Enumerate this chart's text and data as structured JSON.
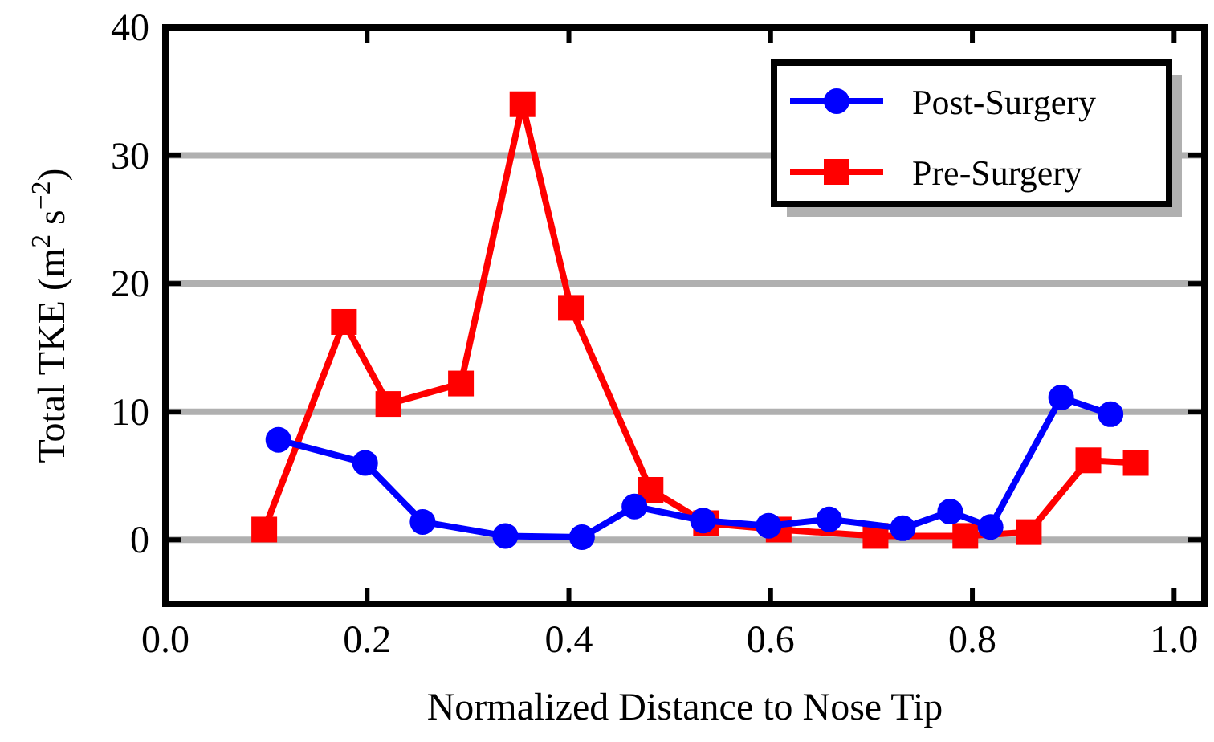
{
  "chart_data": {
    "type": "line",
    "xlabel": "Normalized Distance to Nose Tip",
    "ylabel": "Total TKE (m$^{2}$ s$^{−2}$)",
    "xlim": [
      0,
      1.03
    ],
    "ylim": [
      -5,
      40
    ],
    "xticks": [
      {
        "value": 0,
        "label": "0.0"
      },
      {
        "value": 0.2,
        "label": "0.2"
      },
      {
        "value": 0.4,
        "label": "0.4"
      },
      {
        "value": 0.6,
        "label": "0.6"
      },
      {
        "value": 0.8,
        "label": "0.8"
      },
      {
        "value": 1,
        "label": "1.0"
      }
    ],
    "yticks": [
      0,
      10,
      20,
      30,
      40
    ],
    "grid": "y",
    "legend": "top right",
    "line_style": "solid",
    "series": [
      {
        "name": "Post-Surgery",
        "color": "#0000ff",
        "marker": "circle",
        "x": [
          0.112,
          0.198,
          0.255,
          0.337,
          0.413,
          0.465,
          0.533,
          0.598,
          0.658,
          0.731,
          0.778,
          0.818,
          0.888,
          0.937
        ],
        "values": [
          7.8,
          6.0,
          1.4,
          0.3,
          0.2,
          2.6,
          1.5,
          1.1,
          1.6,
          0.9,
          2.2,
          1.0,
          11.1,
          9.8
        ]
      },
      {
        "name": "Pre-Surgery",
        "color": "#ff0000",
        "marker": "square",
        "x": [
          0.098,
          0.177,
          0.221,
          0.293,
          0.354,
          0.402,
          0.481,
          0.536,
          0.608,
          0.704,
          0.793,
          0.856,
          0.915,
          0.962
        ],
        "values": [
          0.8,
          17.0,
          10.6,
          12.2,
          34.0,
          18.1,
          3.9,
          1.3,
          0.8,
          0.3,
          0.3,
          0.6,
          6.2,
          6.0
        ]
      }
    ]
  }
}
